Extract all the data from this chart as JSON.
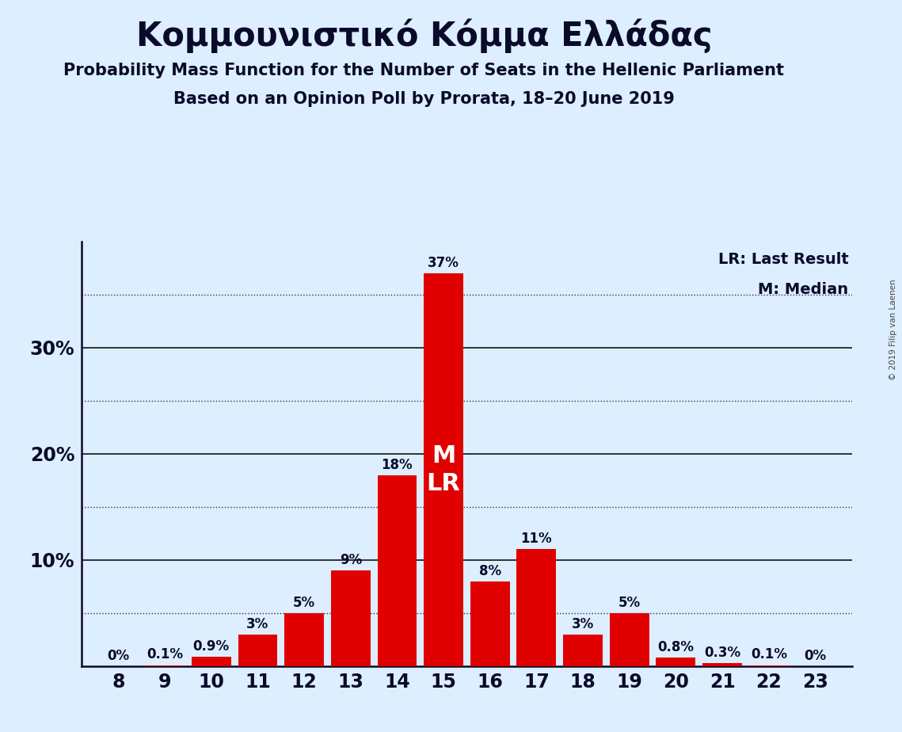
{
  "title": "Κομμουνιστικό Κόμμα Ελλάδας",
  "subtitle1": "Probability Mass Function for the Number of Seats in the Hellenic Parliament",
  "subtitle2": "Based on an Opinion Poll by Prorata, 18–20 June 2019",
  "copyright": "© 2019 Filip van Laenen",
  "seats": [
    8,
    9,
    10,
    11,
    12,
    13,
    14,
    15,
    16,
    17,
    18,
    19,
    20,
    21,
    22,
    23
  ],
  "probabilities": [
    0.0,
    0.001,
    0.009,
    0.03,
    0.05,
    0.09,
    0.18,
    0.37,
    0.08,
    0.11,
    0.03,
    0.05,
    0.008,
    0.003,
    0.001,
    0.0
  ],
  "labels": [
    "0%",
    "0.1%",
    "0.9%",
    "3%",
    "5%",
    "9%",
    "18%",
    "37%",
    "8%",
    "11%",
    "3%",
    "5%",
    "0.8%",
    "0.3%",
    "0.1%",
    "0%"
  ],
  "bar_color": "#e00000",
  "background_color": "#ddeeff",
  "median_seat": 15,
  "last_result_seat": 15,
  "legend_line1": "LR: Last Result",
  "legend_line2": "M: Median",
  "solid_gridlines": [
    0.1,
    0.2,
    0.3
  ],
  "dotted_gridlines": [
    0.05,
    0.15,
    0.25,
    0.35
  ],
  "ytick_positions": [
    0.1,
    0.2,
    0.3
  ],
  "ytick_labels": [
    "10%",
    "20%",
    "30%"
  ],
  "ylim": [
    0,
    0.4
  ]
}
